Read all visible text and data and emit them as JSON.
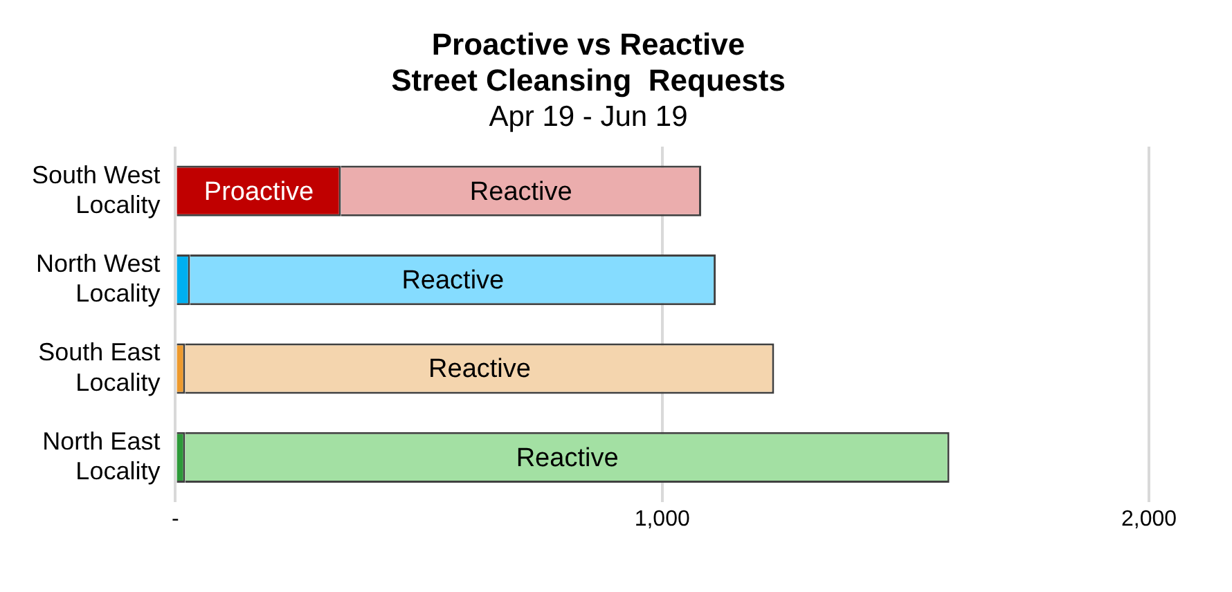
{
  "chart_data": {
    "type": "bar",
    "orientation": "horizontal",
    "stacked": true,
    "title": "Proactive vs Reactive\nStreet Cleansing  Requests",
    "subtitle": "Apr 19 - Jun 19",
    "categories": [
      "South West Locality",
      "North West Locality",
      "South East Locality",
      "North East Locality"
    ],
    "series": [
      {
        "name": "Proactive",
        "colors": [
          "#c00000",
          "#00b0f0",
          "#ed9a2e",
          "#2e9a3a"
        ],
        "values": [
          340,
          30,
          20,
          20
        ]
      },
      {
        "name": "Reactive",
        "colors": [
          "#ebadad",
          "#85dcff",
          "#f4d5ae",
          "#a3e0a3"
        ],
        "values": [
          740,
          1080,
          1210,
          1570
        ]
      }
    ],
    "xlim": [
      0,
      2000
    ],
    "xticks": [
      {
        "value": 0,
        "label": "-"
      },
      {
        "value": 1000,
        "label": "1,000"
      },
      {
        "value": 2000,
        "label": "2,000"
      }
    ],
    "grid": "x",
    "legend": false
  }
}
